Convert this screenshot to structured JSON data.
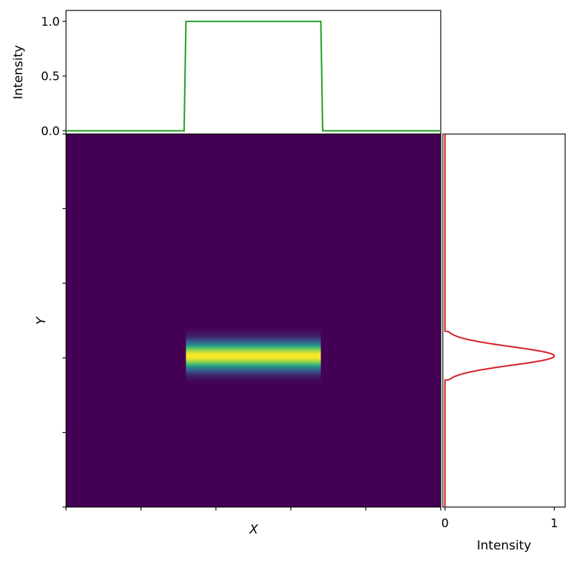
{
  "colors": {
    "background": "#440154",
    "green_line": "#2ca02c",
    "red_line": "#d62728",
    "axes": "#000000"
  },
  "chart_data": [
    {
      "type": "line",
      "panel": "top-marginal",
      "ylabel": "Intensity",
      "ylim": [
        -0.03,
        1.1
      ],
      "xlim": [
        -1,
        1
      ],
      "yticks": [
        0.0,
        0.5,
        1.0
      ],
      "ytick_labels": [
        "0.0",
        "0.5",
        "1.0"
      ],
      "series": [
        {
          "color": "#2ca02c",
          "x": [
            -1.0,
            -0.37,
            -0.36,
            0.36,
            0.37,
            1.0
          ],
          "y": [
            0,
            0,
            1,
            1,
            0,
            0
          ]
        }
      ]
    },
    {
      "type": "heatmap",
      "panel": "main",
      "xlabel": "X",
      "ylabel": "Y",
      "colormap": "viridis",
      "xlim": [
        -1,
        1
      ],
      "ylim": [
        -1,
        1
      ],
      "x_tick_count": 6,
      "y_tick_count": 6,
      "feature": {
        "description_shape": "horizontal-bar",
        "x_range": [
          -0.36,
          0.36
        ],
        "y_center": -0.19,
        "y_sigma": 0.05
      },
      "colorstops": [
        "#440154",
        "#3b528b",
        "#21918c",
        "#5ec962",
        "#fde725"
      ]
    },
    {
      "type": "line",
      "panel": "right-marginal",
      "xlabel": "Intensity",
      "xlim": [
        -0.02,
        1.1
      ],
      "ylim": [
        -1,
        1
      ],
      "xticks": [
        0,
        1
      ],
      "xtick_labels": [
        "0",
        "1"
      ],
      "series": [
        {
          "color": "#d62728",
          "y_center": -0.19,
          "y_sigma": 0.05,
          "y_cutoff": 0.13,
          "peak": 1.0
        }
      ]
    }
  ]
}
